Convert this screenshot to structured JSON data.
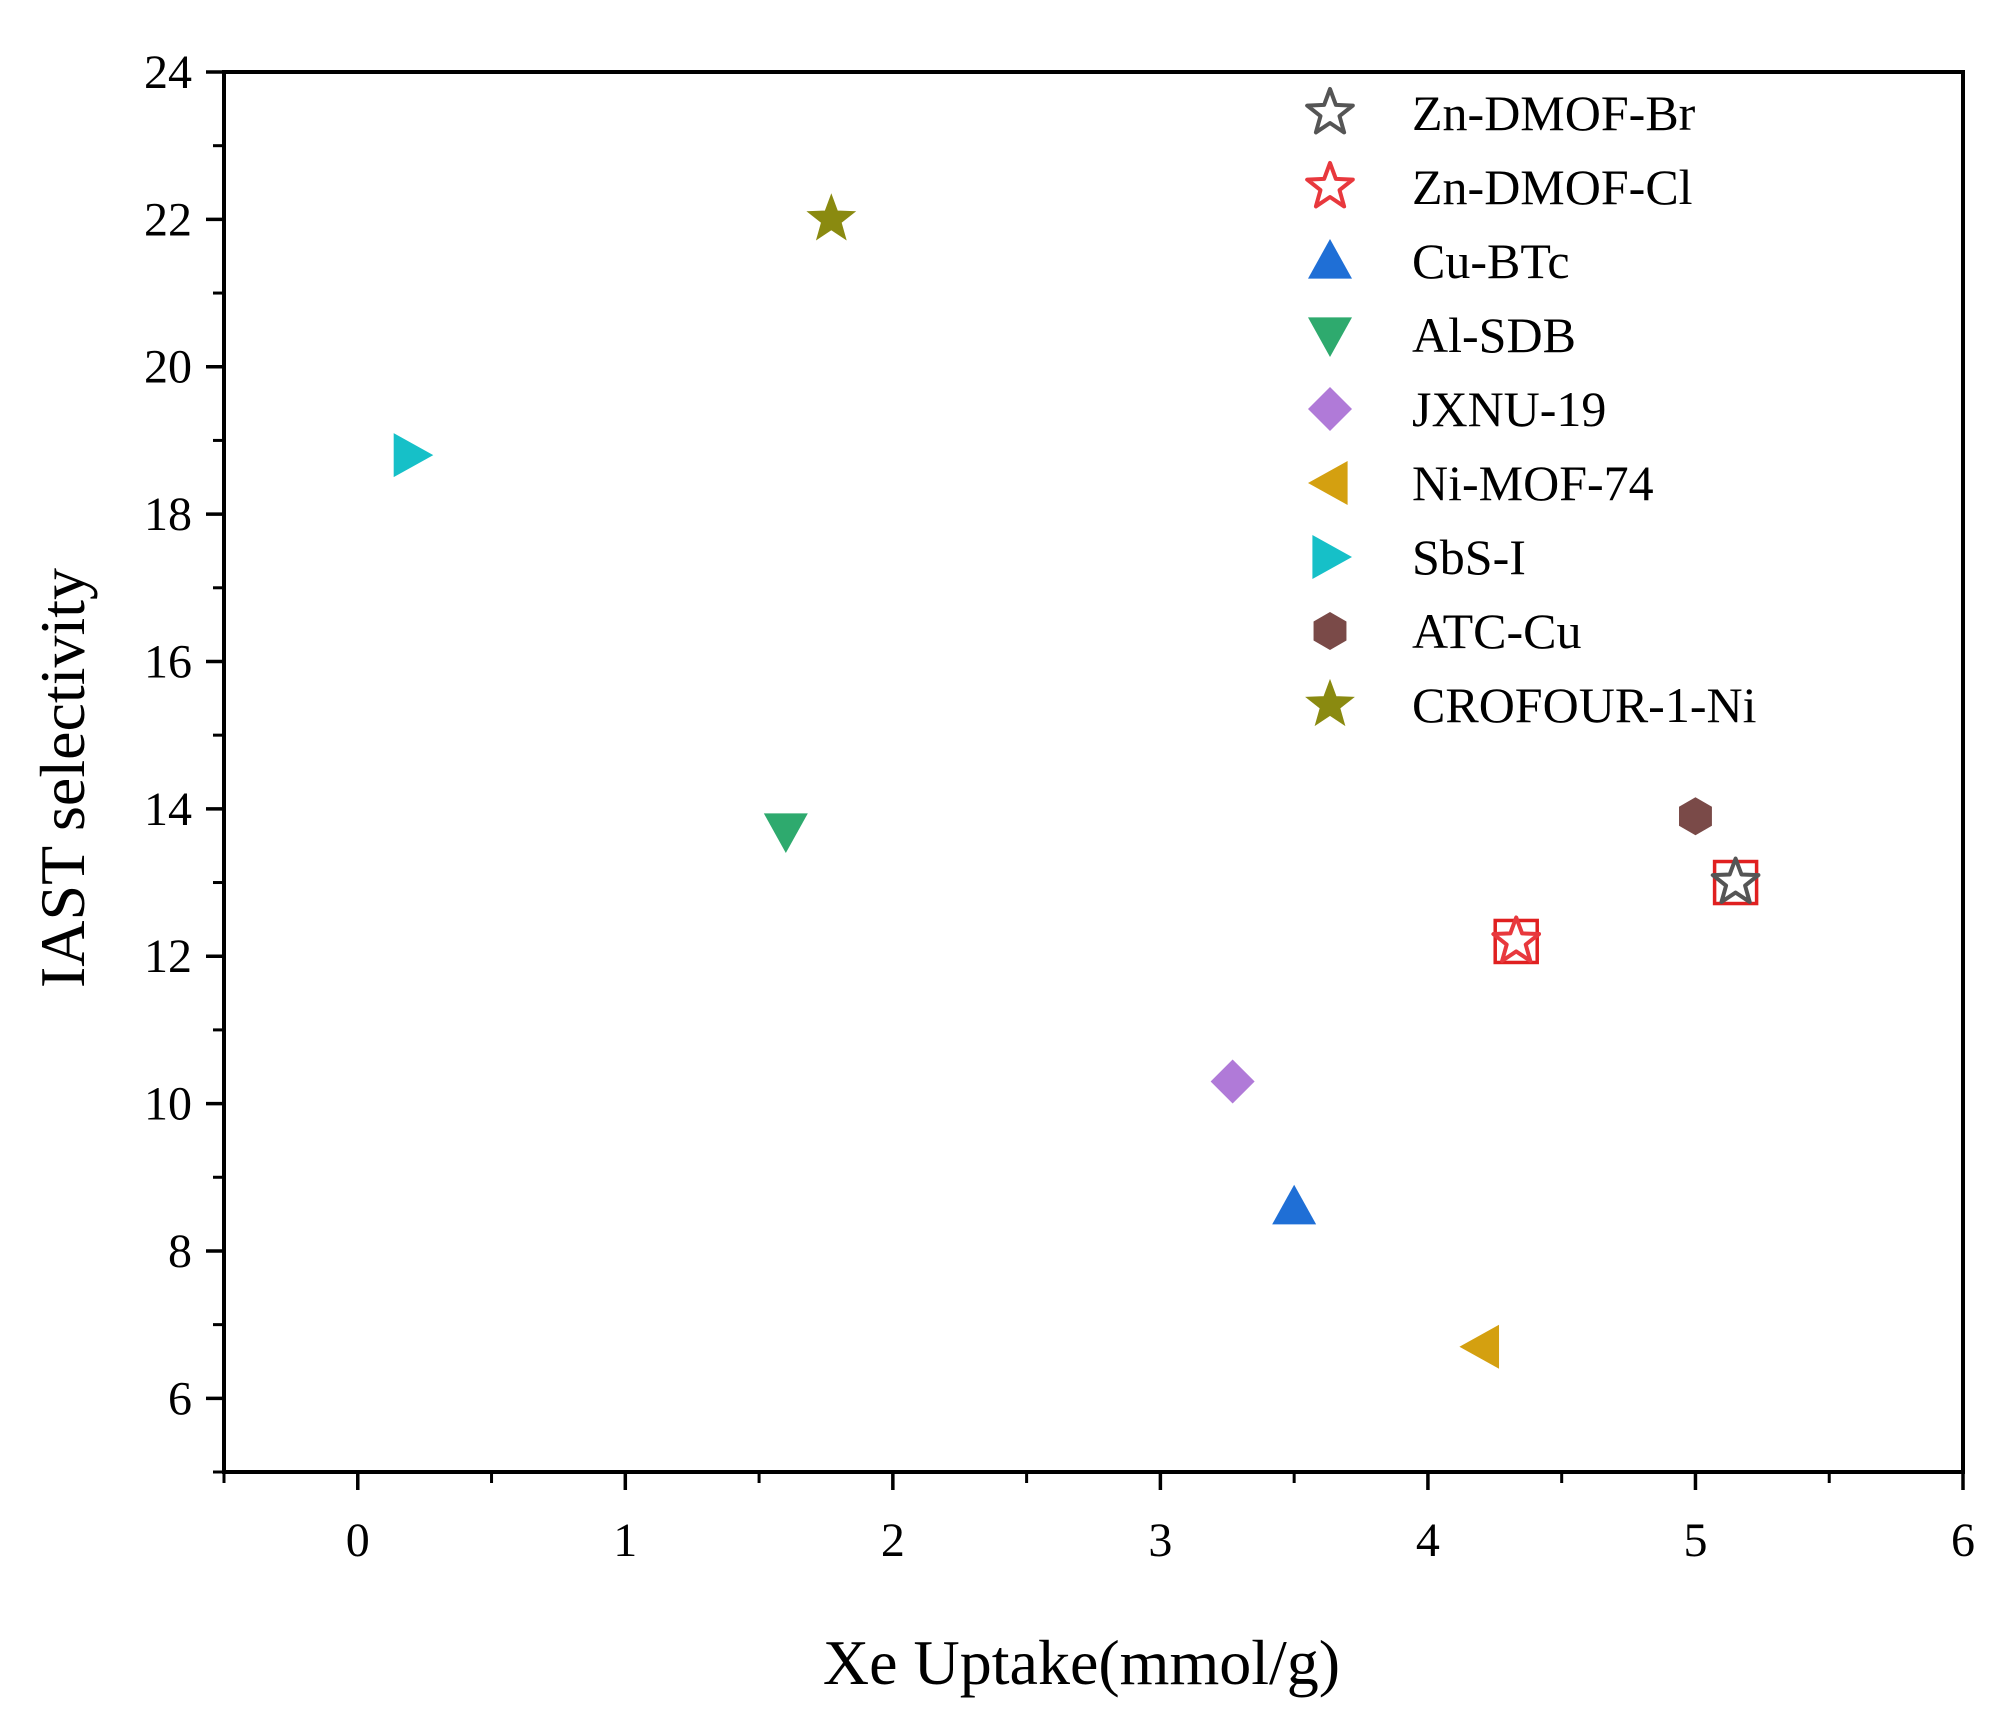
{
  "chart_data": {
    "type": "scatter",
    "title": "",
    "xlabel": "Xe Uptake(mmol/g)",
    "ylabel": "IAST selectivity",
    "xlim": [
      -0.5,
      6
    ],
    "ylim": [
      5,
      24
    ],
    "xticks": [
      0,
      1,
      2,
      3,
      4,
      5,
      6
    ],
    "yticks": [
      6,
      8,
      10,
      12,
      14,
      16,
      18,
      20,
      22,
      24
    ],
    "grid": false,
    "legend_position": "top-right",
    "series": [
      {
        "name": "Zn-DMOF-Br",
        "x": 5.15,
        "y": 13.0,
        "marker": "star-open",
        "color": "#555555",
        "highlighted": true
      },
      {
        "name": "Zn-DMOF-Cl",
        "x": 4.33,
        "y": 12.2,
        "marker": "star-open",
        "color": "#e8383d",
        "highlighted": true
      },
      {
        "name": "Cu-BTc",
        "x": 3.5,
        "y": 8.6,
        "marker": "triangle-up",
        "color": "#1f6fd6"
      },
      {
        "name": "Al-SDB",
        "x": 1.6,
        "y": 13.7,
        "marker": "triangle-down",
        "color": "#2eaa6e"
      },
      {
        "name": "JXNU-19",
        "x": 3.27,
        "y": 10.3,
        "marker": "diamond",
        "color": "#b07ad8"
      },
      {
        "name": "Ni-MOF-74",
        "x": 4.2,
        "y": 6.7,
        "marker": "triangle-left",
        "color": "#d4a010"
      },
      {
        "name": "SbS-I",
        "x": 0.2,
        "y": 18.8,
        "marker": "triangle-right",
        "color": "#16c0c8"
      },
      {
        "name": "ATC-Cu",
        "x": 5.0,
        "y": 13.9,
        "marker": "hexagon",
        "color": "#7a4a48"
      },
      {
        "name": "CROFOUR-1-Ni",
        "x": 1.77,
        "y": 22.0,
        "marker": "star",
        "color": "#8a8a10"
      }
    ],
    "highlight_box_color": "#e02020"
  }
}
